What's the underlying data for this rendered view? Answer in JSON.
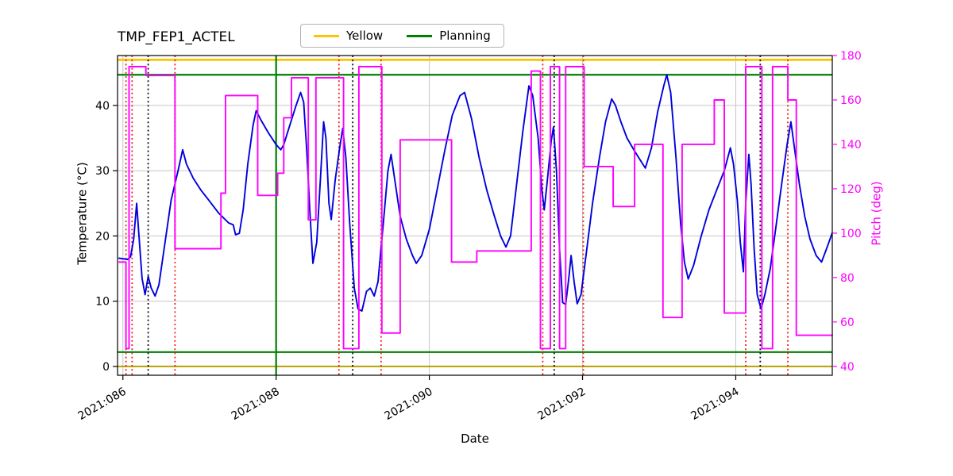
{
  "chart_data": {
    "type": "line",
    "title": "TMP_FEP1_ACTEL",
    "xlabel": "Date",
    "ylabel_left": "Temperature (°C)",
    "ylabel_right": "Pitch (deg)",
    "grid": true,
    "legend": [
      {
        "label": "Yellow",
        "color": "#ffc400"
      },
      {
        "label": "Planning",
        "color": "#008000"
      }
    ],
    "xlim": [
      85.93,
      95.26
    ],
    "ylim_left": [
      -1.35,
      47.65
    ],
    "ylim_right": [
      36.0,
      180.0
    ],
    "x_ticks": [
      {
        "value": 86,
        "label": "2021:086"
      },
      {
        "value": 88,
        "label": "2021:088"
      },
      {
        "value": 90,
        "label": "2021:090"
      },
      {
        "value": 92,
        "label": "2021:092"
      },
      {
        "value": 94,
        "label": "2021:094"
      }
    ],
    "yticks_left": [
      0,
      10,
      20,
      30,
      40
    ],
    "yticks_right": [
      40,
      60,
      80,
      100,
      120,
      140,
      160,
      180
    ],
    "limit_lines": [
      {
        "name": "yellow-high",
        "y": 47.0,
        "color": "#ffc400",
        "width": 2.8
      },
      {
        "name": "yellow-low",
        "y": 0.0,
        "color": "#b8a000",
        "width": 2
      },
      {
        "name": "planning-high",
        "y": 44.7,
        "color": "#008000",
        "width": 2.2
      },
      {
        "name": "planning-low",
        "y": 2.2,
        "color": "#008000",
        "width": 2.2
      }
    ],
    "event_lines": [
      {
        "x": 88.0,
        "color": "#008000",
        "style": "solid",
        "width": 2.2
      },
      {
        "x": 86.04,
        "color": "#ee2222",
        "style": "dotted"
      },
      {
        "x": 86.12,
        "color": "#ee2222",
        "style": "dotted"
      },
      {
        "x": 86.68,
        "color": "#ee2222",
        "style": "dotted"
      },
      {
        "x": 88.82,
        "color": "#ee2222",
        "style": "dotted"
      },
      {
        "x": 89.37,
        "color": "#ee2222",
        "style": "dotted"
      },
      {
        "x": 91.48,
        "color": "#ee2222",
        "style": "dotted"
      },
      {
        "x": 92.01,
        "color": "#ee2222",
        "style": "dotted"
      },
      {
        "x": 94.13,
        "color": "#ee2222",
        "style": "dotted"
      },
      {
        "x": 94.68,
        "color": "#ee2222",
        "style": "dotted"
      },
      {
        "x": 86.33,
        "color": "#111111",
        "style": "dotted"
      },
      {
        "x": 89.0,
        "color": "#111111",
        "style": "dotted"
      },
      {
        "x": 91.63,
        "color": "#111111",
        "style": "dotted"
      },
      {
        "x": 94.32,
        "color": "#111111",
        "style": "dotted"
      }
    ],
    "series": [
      {
        "name": "temperature",
        "axis": "left",
        "color": "#0000dd",
        "width": 1.9,
        "interp": "linear",
        "points": [
          [
            85.95,
            16.6
          ],
          [
            86.06,
            16.4
          ],
          [
            86.1,
            16.8
          ],
          [
            86.14,
            19.5
          ],
          [
            86.18,
            25.0
          ],
          [
            86.21,
            20.0
          ],
          [
            86.25,
            13.5
          ],
          [
            86.29,
            11.0
          ],
          [
            86.33,
            13.8
          ],
          [
            86.37,
            12.0
          ],
          [
            86.42,
            10.8
          ],
          [
            86.47,
            12.5
          ],
          [
            86.55,
            19.0
          ],
          [
            86.63,
            25.5
          ],
          [
            86.72,
            30.0
          ],
          [
            86.78,
            33.2
          ],
          [
            86.83,
            31.0
          ],
          [
            86.92,
            28.8
          ],
          [
            87.02,
            27.0
          ],
          [
            87.12,
            25.5
          ],
          [
            87.25,
            23.5
          ],
          [
            87.38,
            22.0
          ],
          [
            87.44,
            21.7
          ],
          [
            87.47,
            20.2
          ],
          [
            87.52,
            20.4
          ],
          [
            87.57,
            24.0
          ],
          [
            87.63,
            31.0
          ],
          [
            87.7,
            37.0
          ],
          [
            87.74,
            39.2
          ],
          [
            87.8,
            37.8
          ],
          [
            87.9,
            35.8
          ],
          [
            88.0,
            34.0
          ],
          [
            88.06,
            33.2
          ],
          [
            88.1,
            34.0
          ],
          [
            88.18,
            37.0
          ],
          [
            88.26,
            40.0
          ],
          [
            88.32,
            42.0
          ],
          [
            88.36,
            40.5
          ],
          [
            88.4,
            33.0
          ],
          [
            88.44,
            24.0
          ],
          [
            88.48,
            15.8
          ],
          [
            88.53,
            19.0
          ],
          [
            88.58,
            29.0
          ],
          [
            88.62,
            37.5
          ],
          [
            88.65,
            35.0
          ],
          [
            88.69,
            25.0
          ],
          [
            88.72,
            22.5
          ],
          [
            88.77,
            28.5
          ],
          [
            88.83,
            33.5
          ],
          [
            88.87,
            36.5
          ],
          [
            88.91,
            32.0
          ],
          [
            88.96,
            22.0
          ],
          [
            89.02,
            12.0
          ],
          [
            89.07,
            8.8
          ],
          [
            89.12,
            8.5
          ],
          [
            89.18,
            11.5
          ],
          [
            89.23,
            12.0
          ],
          [
            89.28,
            10.8
          ],
          [
            89.33,
            13.0
          ],
          [
            89.4,
            22.0
          ],
          [
            89.46,
            30.0
          ],
          [
            89.5,
            32.5
          ],
          [
            89.55,
            28.5
          ],
          [
            89.62,
            23.0
          ],
          [
            89.7,
            19.5
          ],
          [
            89.78,
            17.0
          ],
          [
            89.83,
            15.8
          ],
          [
            89.9,
            17.0
          ],
          [
            90.0,
            21.0
          ],
          [
            90.1,
            27.0
          ],
          [
            90.2,
            33.0
          ],
          [
            90.3,
            38.5
          ],
          [
            90.4,
            41.5
          ],
          [
            90.46,
            42.0
          ],
          [
            90.55,
            38.0
          ],
          [
            90.65,
            32.0
          ],
          [
            90.75,
            27.0
          ],
          [
            90.85,
            23.0
          ],
          [
            90.93,
            20.0
          ],
          [
            91.0,
            18.3
          ],
          [
            91.06,
            20.0
          ],
          [
            91.14,
            28.0
          ],
          [
            91.22,
            36.0
          ],
          [
            91.3,
            43.0
          ],
          [
            91.35,
            41.5
          ],
          [
            91.42,
            35.0
          ],
          [
            91.47,
            27.0
          ],
          [
            91.5,
            24.0
          ],
          [
            91.54,
            28.5
          ],
          [
            91.59,
            34.5
          ],
          [
            91.62,
            36.7
          ],
          [
            91.66,
            30.0
          ],
          [
            91.7,
            18.0
          ],
          [
            91.74,
            9.8
          ],
          [
            91.78,
            9.5
          ],
          [
            91.82,
            13.5
          ],
          [
            91.85,
            17.0
          ],
          [
            91.89,
            13.0
          ],
          [
            91.93,
            9.6
          ],
          [
            91.98,
            11.0
          ],
          [
            92.05,
            17.5
          ],
          [
            92.13,
            25.0
          ],
          [
            92.22,
            32.0
          ],
          [
            92.3,
            37.5
          ],
          [
            92.38,
            41.0
          ],
          [
            92.43,
            40.0
          ],
          [
            92.5,
            37.5
          ],
          [
            92.58,
            35.0
          ],
          [
            92.68,
            33.0
          ],
          [
            92.76,
            31.5
          ],
          [
            92.82,
            30.4
          ],
          [
            92.9,
            33.5
          ],
          [
            92.98,
            39.0
          ],
          [
            93.06,
            43.0
          ],
          [
            93.1,
            44.7
          ],
          [
            93.15,
            42.0
          ],
          [
            93.22,
            32.0
          ],
          [
            93.28,
            22.0
          ],
          [
            93.33,
            16.0
          ],
          [
            93.38,
            13.4
          ],
          [
            93.45,
            15.5
          ],
          [
            93.55,
            20.0
          ],
          [
            93.65,
            24.0
          ],
          [
            93.75,
            27.0
          ],
          [
            93.85,
            30.0
          ],
          [
            93.93,
            33.5
          ],
          [
            93.97,
            31.0
          ],
          [
            94.02,
            25.5
          ],
          [
            94.06,
            19.0
          ],
          [
            94.1,
            14.5
          ],
          [
            94.13,
            25.0
          ],
          [
            94.17,
            32.5
          ],
          [
            94.2,
            28.0
          ],
          [
            94.24,
            18.0
          ],
          [
            94.28,
            11.0
          ],
          [
            94.33,
            8.8
          ],
          [
            94.38,
            11.0
          ],
          [
            94.45,
            15.0
          ],
          [
            94.52,
            21.0
          ],
          [
            94.6,
            28.0
          ],
          [
            94.67,
            34.0
          ],
          [
            94.72,
            37.5
          ],
          [
            94.76,
            34.0
          ],
          [
            94.83,
            28.0
          ],
          [
            94.9,
            23.0
          ],
          [
            94.97,
            19.5
          ],
          [
            95.05,
            17.0
          ],
          [
            95.12,
            16.0
          ],
          [
            95.2,
            18.5
          ],
          [
            95.26,
            20.5
          ]
        ]
      },
      {
        "name": "pitch",
        "axis": "right",
        "color": "#ff00ff",
        "width": 1.9,
        "interp": "step",
        "points": [
          [
            85.95,
            87
          ],
          [
            86.04,
            48
          ],
          [
            86.08,
            175
          ],
          [
            86.3,
            171
          ],
          [
            86.68,
            93
          ],
          [
            87.28,
            118
          ],
          [
            87.34,
            162
          ],
          [
            87.76,
            117
          ],
          [
            88.02,
            127
          ],
          [
            88.1,
            152
          ],
          [
            88.2,
            170
          ],
          [
            88.42,
            106
          ],
          [
            88.52,
            170
          ],
          [
            88.88,
            48
          ],
          [
            89.08,
            175
          ],
          [
            89.38,
            55
          ],
          [
            89.62,
            142
          ],
          [
            90.29,
            87
          ],
          [
            90.62,
            92
          ],
          [
            91.33,
            173
          ],
          [
            91.45,
            48
          ],
          [
            91.58,
            175
          ],
          [
            91.7,
            48
          ],
          [
            91.78,
            175
          ],
          [
            92.02,
            130
          ],
          [
            92.4,
            112
          ],
          [
            92.68,
            140
          ],
          [
            93.05,
            62
          ],
          [
            93.3,
            140
          ],
          [
            93.72,
            160
          ],
          [
            93.85,
            64
          ],
          [
            94.13,
            175
          ],
          [
            94.34,
            48
          ],
          [
            94.48,
            175
          ],
          [
            94.68,
            160
          ],
          [
            94.79,
            54
          ],
          [
            95.26,
            54
          ]
        ]
      }
    ]
  }
}
